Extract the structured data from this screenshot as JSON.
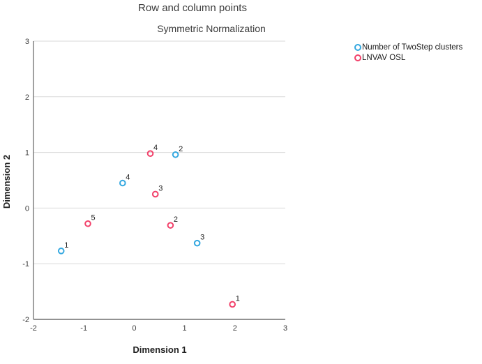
{
  "chart_data": {
    "type": "scatter",
    "title": "Row and column points",
    "subtitle": "Symmetric Normalization",
    "xlabel": "Dimension 1",
    "ylabel": "Dimension 2",
    "xlim": [
      -2,
      3
    ],
    "ylim": [
      -2,
      3
    ],
    "x_ticks": [
      -2,
      -1,
      0,
      1,
      2,
      3
    ],
    "y_ticks": [
      -2,
      -1,
      0,
      1,
      2,
      3
    ],
    "grid": "horizontal-gridlines-only",
    "legend_position": "top-right",
    "marker_style": "open-circle",
    "colors": {
      "gridline": "#d9d9d9",
      "axis": "#6e6e6e",
      "blue_series": "#35a8e0",
      "red_series": "#f2426b"
    },
    "series": [
      {
        "name": "Number of TwoStep clusters",
        "color": "#35a8e0",
        "points": [
          {
            "label": "1",
            "x": -1.45,
            "y": -0.77
          },
          {
            "label": "2",
            "x": 0.82,
            "y": 0.96
          },
          {
            "label": "3",
            "x": 1.25,
            "y": -0.63
          },
          {
            "label": "4",
            "x": -0.23,
            "y": 0.45
          }
        ]
      },
      {
        "name": "LNVAV OSL",
        "color": "#f2426b",
        "points": [
          {
            "label": "1",
            "x": 1.95,
            "y": -1.73
          },
          {
            "label": "2",
            "x": 0.72,
            "y": -0.31
          },
          {
            "label": "3",
            "x": 0.42,
            "y": 0.25
          },
          {
            "label": "4",
            "x": 0.32,
            "y": 0.98
          },
          {
            "label": "5",
            "x": -0.92,
            "y": -0.28
          }
        ]
      }
    ]
  }
}
